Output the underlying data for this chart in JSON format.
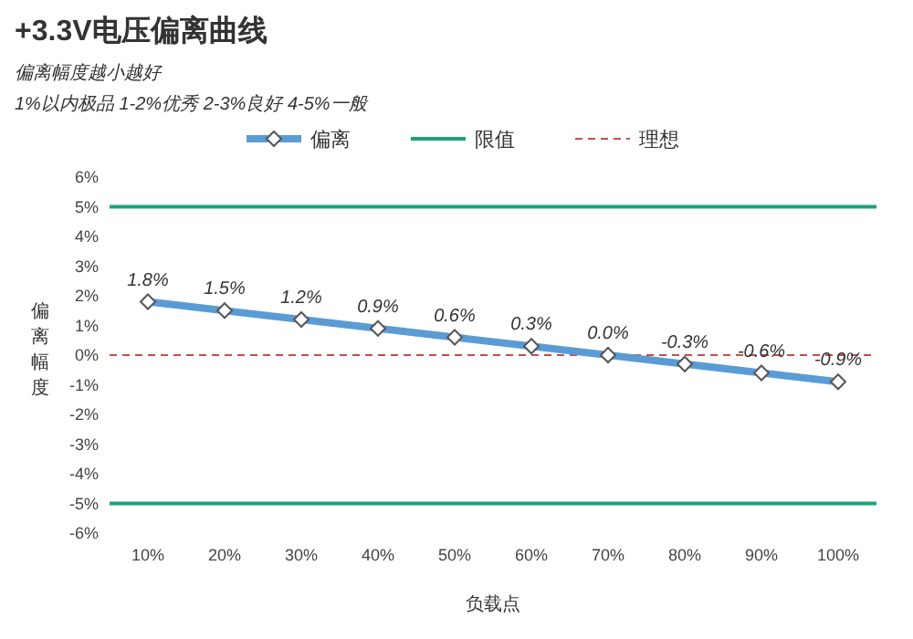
{
  "chart_data": {
    "type": "line",
    "title": "+3.3V电压偏离曲线",
    "subtitle": "偏离幅度越小越好",
    "annotations": [
      "1%以内极品 1-2%优秀 2-3%良好 4-5%一般"
    ],
    "xlabel": "负载点",
    "ylabel": "偏离幅度",
    "categories": [
      "10%",
      "20%",
      "30%",
      "40%",
      "50%",
      "60%",
      "70%",
      "80%",
      "90%",
      "100%"
    ],
    "series": [
      {
        "name": "偏离",
        "color": "#5b9bd5",
        "values": [
          1.8,
          1.5,
          1.2,
          0.9,
          0.6,
          0.3,
          0.0,
          -0.3,
          -0.6,
          -0.9
        ],
        "value_labels": [
          "1.8%",
          "1.5%",
          "1.2%",
          "0.9%",
          "0.6%",
          "0.3%",
          "0.0%",
          "-0.3%",
          "-0.6%",
          "-0.9%"
        ]
      }
    ],
    "ref_lines": [
      {
        "axis": "y",
        "value": 5,
        "label": "限值",
        "color": "#1aa37a",
        "line_style": "solid"
      },
      {
        "axis": "y",
        "value": -5,
        "color": "#1aa37a",
        "line_style": "solid"
      },
      {
        "axis": "y",
        "value": 0,
        "label": "理想",
        "color": "#c0504d",
        "line_style": "dashed"
      }
    ],
    "ylim": [
      -6,
      6
    ],
    "yticks": [
      {
        "value": -6,
        "label": "-6%"
      },
      {
        "value": -5,
        "label": "-5%"
      },
      {
        "value": -4,
        "label": "-4%"
      },
      {
        "value": -3,
        "label": "-3%"
      },
      {
        "value": -2,
        "label": "-2%"
      },
      {
        "value": -1,
        "label": "-1%"
      },
      {
        "value": 0,
        "label": "0%"
      },
      {
        "value": 1,
        "label": "1%"
      },
      {
        "value": 2,
        "label": "2%"
      },
      {
        "value": 3,
        "label": "3%"
      },
      {
        "value": 4,
        "label": "4%"
      },
      {
        "value": 5,
        "label": "5%"
      },
      {
        "value": 6,
        "label": "6%"
      }
    ],
    "marker": "diamond",
    "legend": "top",
    "grid": false
  }
}
